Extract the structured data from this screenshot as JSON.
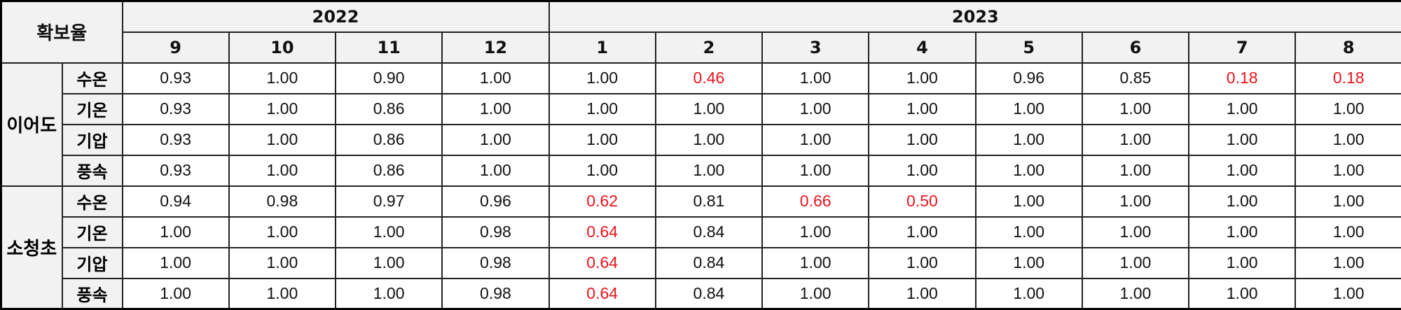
{
  "corner_label": "확보율",
  "years": [
    {
      "label": "2022",
      "months": [
        "9",
        "10",
        "11",
        "12"
      ]
    },
    {
      "label": "2023",
      "months": [
        "1",
        "2",
        "3",
        "4",
        "5",
        "6",
        "7",
        "8"
      ]
    }
  ],
  "highlight_color": "#e8141b",
  "groups": [
    {
      "name": "이어도",
      "rows": [
        {
          "var": "수온",
          "values": [
            "0.93",
            "1.00",
            "0.90",
            "1.00",
            "1.00",
            "0.46",
            "1.00",
            "1.00",
            "0.96",
            "0.85",
            "0.18",
            "0.18"
          ],
          "red": [
            5,
            10,
            11
          ]
        },
        {
          "var": "기온",
          "values": [
            "0.93",
            "1.00",
            "0.86",
            "1.00",
            "1.00",
            "1.00",
            "1.00",
            "1.00",
            "1.00",
            "1.00",
            "1.00",
            "1.00"
          ],
          "red": []
        },
        {
          "var": "기압",
          "values": [
            "0.93",
            "1.00",
            "0.86",
            "1.00",
            "1.00",
            "1.00",
            "1.00",
            "1.00",
            "1.00",
            "1.00",
            "1.00",
            "1.00"
          ],
          "red": []
        },
        {
          "var": "풍속",
          "values": [
            "0.93",
            "1.00",
            "0.86",
            "1.00",
            "1.00",
            "1.00",
            "1.00",
            "1.00",
            "1.00",
            "1.00",
            "1.00",
            "1.00"
          ],
          "red": []
        }
      ]
    },
    {
      "name": "소청초",
      "rows": [
        {
          "var": "수온",
          "values": [
            "0.94",
            "0.98",
            "0.97",
            "0.96",
            "0.62",
            "0.81",
            "0.66",
            "0.50",
            "1.00",
            "1.00",
            "1.00",
            "1.00"
          ],
          "red": [
            4,
            6,
            7
          ]
        },
        {
          "var": "기온",
          "values": [
            "1.00",
            "1.00",
            "1.00",
            "0.98",
            "0.64",
            "0.84",
            "1.00",
            "1.00",
            "1.00",
            "1.00",
            "1.00",
            "1.00"
          ],
          "red": [
            4
          ]
        },
        {
          "var": "기압",
          "values": [
            "1.00",
            "1.00",
            "1.00",
            "0.98",
            "0.64",
            "0.84",
            "1.00",
            "1.00",
            "1.00",
            "1.00",
            "1.00",
            "1.00"
          ],
          "red": [
            4
          ]
        },
        {
          "var": "풍속",
          "values": [
            "1.00",
            "1.00",
            "1.00",
            "0.98",
            "0.64",
            "0.84",
            "1.00",
            "1.00",
            "1.00",
            "1.00",
            "1.00",
            "1.00"
          ],
          "red": [
            4
          ]
        }
      ]
    }
  ]
}
